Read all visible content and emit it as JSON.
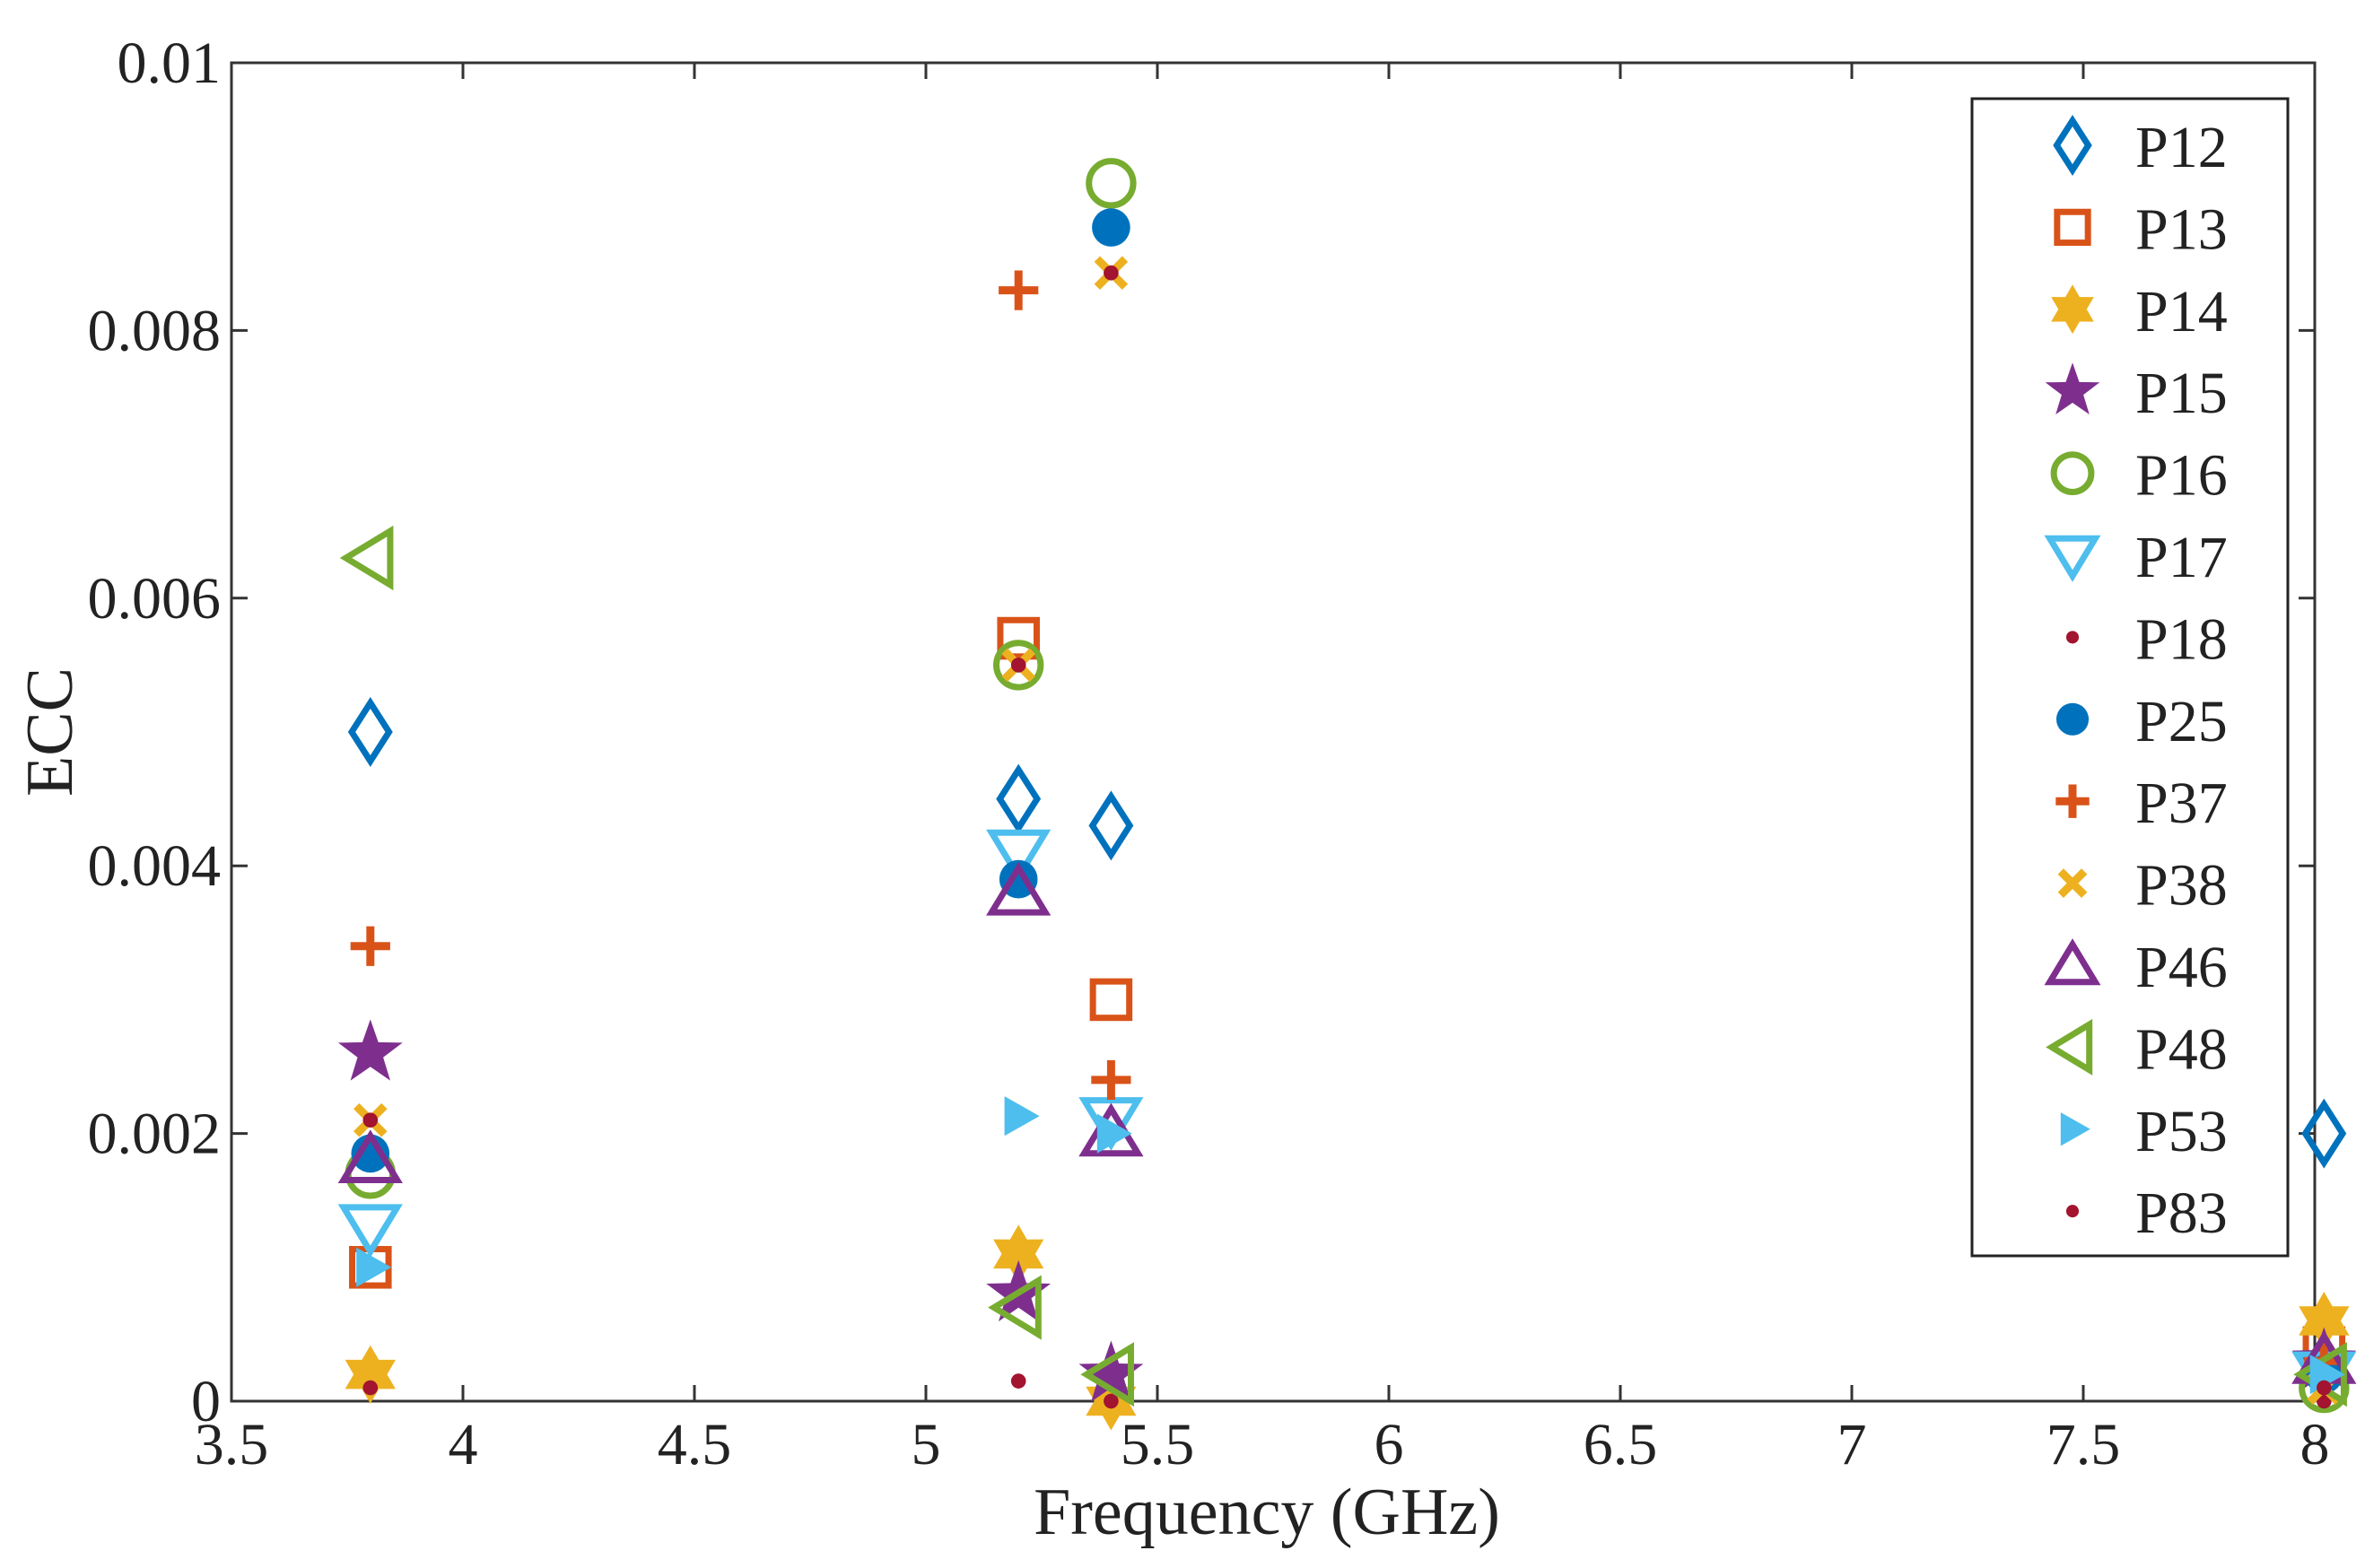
{
  "chart_data": {
    "type": "scatter",
    "title": "",
    "xlabel": "Frequency (GHz)",
    "ylabel": "ECC",
    "xlim": [
      3.5,
      8
    ],
    "ylim": [
      0,
      0.01
    ],
    "xticks": [
      3.5,
      4,
      4.5,
      5,
      5.5,
      6,
      6.5,
      7,
      7.5,
      8
    ],
    "xtick_labels": [
      "3.5",
      "4",
      "4.5",
      "5",
      "5.5",
      "6",
      "6.5",
      "7",
      "7.5",
      "8"
    ],
    "yticks": [
      0,
      0.002,
      0.004,
      0.006,
      0.008,
      0.01
    ],
    "ytick_labels": [
      "0",
      "0.002",
      "0.004",
      "0.006",
      "0.008",
      "0.01"
    ],
    "grid": false,
    "legend_position": "top-right",
    "x": [
      3.8,
      5.2,
      5.4,
      8.02
    ],
    "series": [
      {
        "name": "P12",
        "marker": "diamond-open",
        "color": "#0072BD",
        "values": [
          0.005,
          0.0045,
          0.0043,
          0.002
        ]
      },
      {
        "name": "P13",
        "marker": "square-open",
        "color": "#D95319",
        "values": [
          0.001,
          0.0057,
          0.003,
          0.0004
        ]
      },
      {
        "name": "P14",
        "marker": "hexagram",
        "color": "#EDB120",
        "values": [
          0.0002,
          0.0011,
          0.0,
          0.0006
        ]
      },
      {
        "name": "P15",
        "marker": "pentagram",
        "color": "#7E2F8E",
        "values": [
          0.0026,
          0.0008,
          0.0002,
          0.0003
        ]
      },
      {
        "name": "P16",
        "marker": "circle-open",
        "color": "#77AC30",
        "values": [
          0.0017,
          0.0055,
          0.0091,
          0.0001
        ]
      },
      {
        "name": "P17",
        "marker": "triangle-down-open",
        "color": "#4DBEEE",
        "values": [
          0.0013,
          0.0041,
          0.0021,
          0.0002
        ]
      },
      {
        "name": "P18",
        "marker": "dot",
        "color": "#A2142F",
        "values": [
          0.0001,
          0.00015,
          0.0,
          0.0
        ]
      },
      {
        "name": "P25",
        "marker": "circle-filled",
        "color": "#0072BD",
        "values": [
          0.00185,
          0.0039,
          0.00877,
          0.0002
        ]
      },
      {
        "name": "P37",
        "marker": "plus",
        "color": "#D95319",
        "values": [
          0.0034,
          0.0083,
          0.0024,
          0.0003
        ]
      },
      {
        "name": "P38",
        "marker": "x",
        "color": "#EDB120",
        "values": [
          0.0021,
          0.0055,
          0.00843,
          0.0001
        ]
      },
      {
        "name": "P46",
        "marker": "triangle-up-open",
        "color": "#7E2F8E",
        "values": [
          0.0018,
          0.0038,
          0.002,
          0.0003
        ]
      },
      {
        "name": "P48",
        "marker": "triangle-left-open",
        "color": "#77AC30",
        "values": [
          0.0063,
          0.0007,
          0.0002,
          0.0002
        ]
      },
      {
        "name": "P53",
        "marker": "triangle-right",
        "color": "#4DBEEE",
        "values": [
          0.001,
          0.00213,
          0.002,
          0.0002
        ]
      },
      {
        "name": "P83",
        "marker": "dot",
        "color": "#A2142F",
        "values": [
          0.0021,
          0.0055,
          0.00843,
          0.0001
        ]
      }
    ]
  }
}
